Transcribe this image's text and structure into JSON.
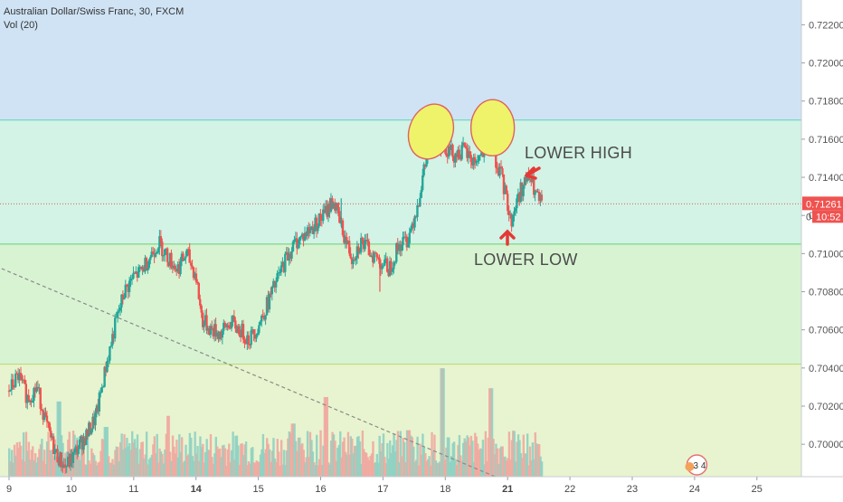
{
  "legend": {
    "title": "Australian Dollar/Swiss Franc, 30, FXCM",
    "volume": "Vol (20)"
  },
  "annotations": {
    "lower_high": "LOWER HIGH",
    "lower_low": "LOWER LOW",
    "badge": "3 4"
  },
  "price_labels": {
    "current_price": "0.71261",
    "countdown": "10:52",
    "partial_tick": "0"
  },
  "colors": {
    "zone_blue": "#cfe3f4",
    "zone_teal": "#d2f3e6",
    "zone_green": "#d8f3d2",
    "zone_yellowgreen": "#e8f4cf",
    "up_candle": "#26a69a",
    "down_candle": "#ef5350",
    "ellipse_fill": "#eef36a",
    "ellipse_stroke": "#e06060",
    "arrow": "#e53935",
    "price_line": "#e06060"
  },
  "chart_data": {
    "type": "candlestick",
    "title": "Australian Dollar/Swiss Franc, 30, FXCM",
    "ylim": [
      0.6983,
      0.7233
    ],
    "y_ticks": [
      "0.72200",
      "0.72000",
      "0.71800",
      "0.71600",
      "0.71400",
      "0.71200",
      "0.71000",
      "0.70800",
      "0.70600",
      "0.70400",
      "0.70200",
      "0.70000"
    ],
    "x_ticks": [
      "9",
      "10",
      "11",
      "14",
      "15",
      "16",
      "17",
      "18",
      "21",
      "22",
      "23",
      "24",
      "25"
    ],
    "x_tick_days": [
      0,
      1,
      2,
      3,
      4,
      5,
      6,
      7,
      8,
      9,
      10,
      11,
      12
    ],
    "bold_ticks": [
      "14",
      "21"
    ],
    "zones": [
      {
        "from": 0.717,
        "to": 0.7233,
        "color_key": "zone_blue"
      },
      {
        "from": 0.7105,
        "to": 0.717,
        "color_key": "zone_teal"
      },
      {
        "from": 0.7042,
        "to": 0.7105,
        "color_key": "zone_green"
      },
      {
        "from": 0.6983,
        "to": 0.7042,
        "color_key": "zone_yellowgreen"
      }
    ],
    "current_price": 0.71261,
    "price_path": [
      [
        0.0,
        0.7028
      ],
      [
        0.15,
        0.7036
      ],
      [
        0.3,
        0.7024
      ],
      [
        0.45,
        0.703
      ],
      [
        0.6,
        0.701
      ],
      [
        0.75,
        0.6995
      ],
      [
        0.9,
        0.6988
      ],
      [
        1.0,
        0.6992
      ],
      [
        1.1,
        0.6998
      ],
      [
        1.25,
        0.7005
      ],
      [
        1.4,
        0.7015
      ],
      [
        1.55,
        0.704
      ],
      [
        1.7,
        0.7062
      ],
      [
        1.85,
        0.708
      ],
      [
        2.0,
        0.7088
      ],
      [
        2.1,
        0.709
      ],
      [
        2.25,
        0.7098
      ],
      [
        2.4,
        0.7106
      ],
      [
        2.55,
        0.7098
      ],
      [
        2.7,
        0.7092
      ],
      [
        2.85,
        0.71
      ],
      [
        3.0,
        0.7088
      ],
      [
        3.1,
        0.7065
      ],
      [
        3.25,
        0.706
      ],
      [
        3.4,
        0.7058
      ],
      [
        3.55,
        0.7064
      ],
      [
        3.7,
        0.706
      ],
      [
        3.85,
        0.7055
      ],
      [
        4.0,
        0.7062
      ],
      [
        4.15,
        0.7074
      ],
      [
        4.3,
        0.7086
      ],
      [
        4.45,
        0.7098
      ],
      [
        4.6,
        0.7106
      ],
      [
        4.75,
        0.711
      ],
      [
        4.9,
        0.7115
      ],
      [
        5.05,
        0.712
      ],
      [
        5.2,
        0.7128
      ],
      [
        5.35,
        0.7112
      ],
      [
        5.5,
        0.7098
      ],
      [
        5.65,
        0.7106
      ],
      [
        5.8,
        0.7101
      ],
      [
        5.95,
        0.7096
      ],
      [
        6.1,
        0.7092
      ],
      [
        6.25,
        0.7104
      ],
      [
        6.4,
        0.7108
      ],
      [
        6.55,
        0.7125
      ],
      [
        6.7,
        0.715
      ],
      [
        6.85,
        0.716
      ],
      [
        7.0,
        0.7156
      ],
      [
        7.15,
        0.7152
      ],
      [
        7.3,
        0.7154
      ],
      [
        7.45,
        0.7148
      ],
      [
        7.6,
        0.7152
      ],
      [
        7.75,
        0.7156
      ],
      [
        7.9,
        0.714
      ],
      [
        8.0,
        0.7126
      ],
      [
        8.05,
        0.7116
      ],
      [
        8.15,
        0.7128
      ],
      [
        8.25,
        0.7136
      ],
      [
        8.35,
        0.714
      ],
      [
        8.45,
        0.7131
      ],
      [
        8.55,
        0.7125
      ]
    ],
    "wick_highs": [
      {
        "day": 6.92,
        "price": 0.7175
      },
      {
        "day": 7.71,
        "price": 0.7172
      },
      {
        "day": 5.33,
        "price": 0.7129
      }
    ],
    "wick_lows": [
      {
        "day": 5.95,
        "price": 0.708
      },
      {
        "day": 8.06,
        "price": 0.7115
      }
    ],
    "volume_spikes": [
      {
        "day": 0.8,
        "level": 0.68
      },
      {
        "day": 2.55,
        "level": 0.55
      },
      {
        "day": 4.55,
        "level": 0.48
      },
      {
        "day": 5.08,
        "level": 0.72
      },
      {
        "day": 6.95,
        "level": 0.98
      },
      {
        "day": 7.72,
        "level": 0.8
      },
      {
        "day": 1.55,
        "level": 0.45
      },
      {
        "day": 6.4,
        "level": 0.42
      }
    ],
    "ellipses": [
      {
        "day": 6.77,
        "price": 0.7164
      },
      {
        "day": 7.76,
        "price": 0.7166
      }
    ],
    "trendline": {
      "from": [
        -0.4,
        0.7096
      ],
      "to": [
        7.8,
        0.6983
      ]
    }
  }
}
